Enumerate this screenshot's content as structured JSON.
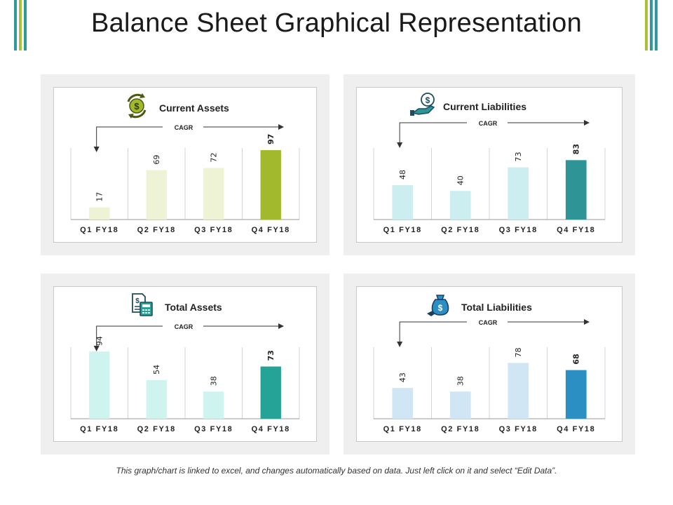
{
  "title": "Balance Sheet Graphical Representation",
  "footer": "This graph/chart is linked to excel, and changes automatically based on data. Just left click on it and select “Edit Data”.",
  "deco_colors": [
    "#2e9a9a",
    "#a7c23a"
  ],
  "chart_data": [
    {
      "type": "bar",
      "title": "Current Assets",
      "icon": "dollar-cycle-icon",
      "annotation": "CAGR",
      "categories": [
        "Q1 FY18",
        "Q2 FY18",
        "Q3 FY18",
        "Q4 FY18"
      ],
      "values": [
        17,
        69,
        72,
        97
      ],
      "colors": [
        "#eef3d6",
        "#eef3d6",
        "#eef3d6",
        "#a3b92d"
      ],
      "ylim": [
        0,
        100
      ]
    },
    {
      "type": "bar",
      "title": "Current Liabilities",
      "icon": "hand-coin-icon",
      "annotation": "CAGR",
      "categories": [
        "Q1 FY18",
        "Q2 FY18",
        "Q3 FY18",
        "Q4 FY18"
      ],
      "values": [
        48,
        40,
        73,
        83
      ],
      "colors": [
        "#cdeef0",
        "#cdeef0",
        "#cdeef0",
        "#2e9496"
      ],
      "ylim": [
        0,
        100
      ]
    },
    {
      "type": "bar",
      "title": "Total Assets",
      "icon": "calculator-document-icon",
      "annotation": "CAGR",
      "categories": [
        "Q1 FY18",
        "Q2 FY18",
        "Q3 FY18",
        "Q4 FY18"
      ],
      "values": [
        94,
        54,
        38,
        73
      ],
      "colors": [
        "#cff4f0",
        "#cff4f0",
        "#cff4f0",
        "#25a397"
      ],
      "ylim": [
        0,
        100
      ]
    },
    {
      "type": "bar",
      "title": "Total Liabilities",
      "icon": "money-bag-icon",
      "annotation": "CAGR",
      "categories": [
        "Q1 FY18",
        "Q2 FY18",
        "Q3 FY18",
        "Q4 FY18"
      ],
      "values": [
        43,
        38,
        78,
        68
      ],
      "colors": [
        "#d1e6f5",
        "#d1e6f5",
        "#d1e6f5",
        "#2b8fc4"
      ],
      "ylim": [
        0,
        100
      ]
    }
  ]
}
